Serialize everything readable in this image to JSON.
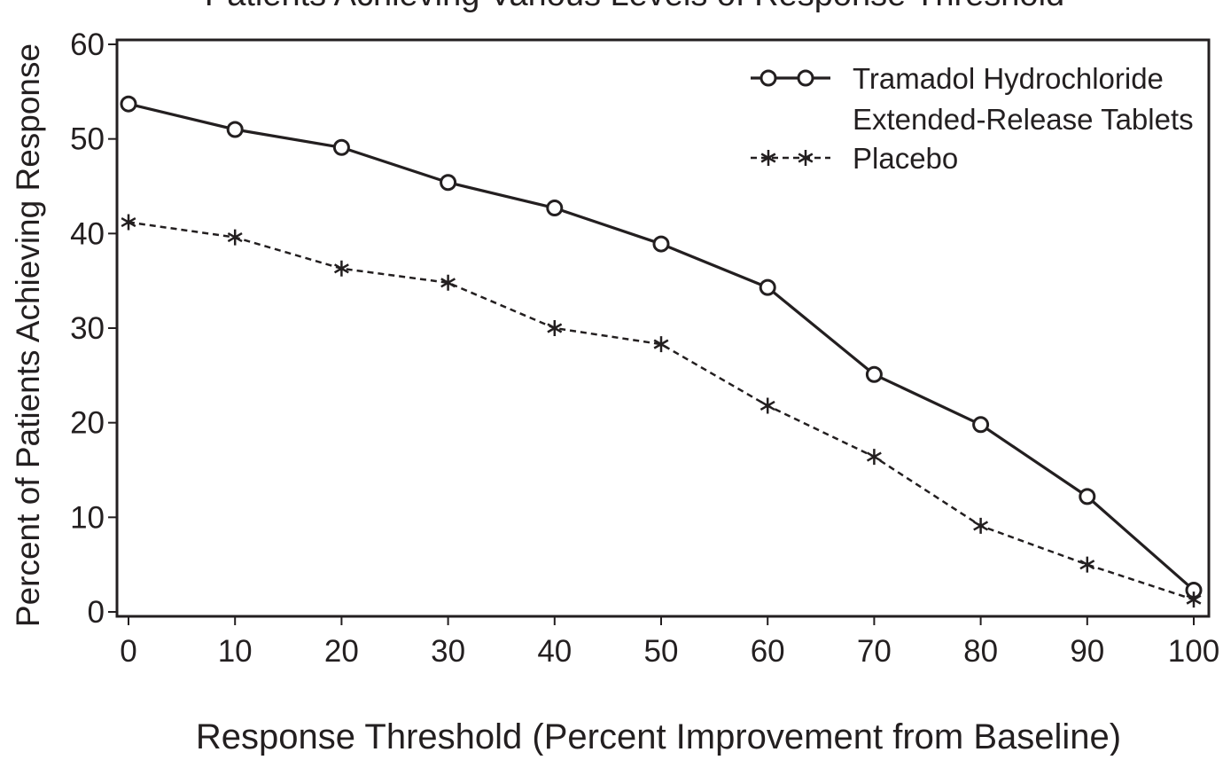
{
  "chart_data": {
    "type": "line",
    "title": "Patients Achieving Various Levels of Response Threshold",
    "xlabel": "Response Threshold (Percent Improvement from Baseline)",
    "ylabel": "Percent of Patients Achieving Response",
    "x": [
      0,
      10,
      20,
      30,
      40,
      50,
      60,
      70,
      80,
      90,
      100
    ],
    "xticks": [
      "0",
      "10",
      "20",
      "30",
      "40",
      "50",
      "60",
      "70",
      "80",
      "90",
      "100"
    ],
    "yticks": [
      "0",
      "10",
      "20",
      "30",
      "40",
      "50",
      "60"
    ],
    "xlim": [
      0,
      100
    ],
    "ylim": [
      0,
      60
    ],
    "grid": false,
    "legend_position": "top-right",
    "series": [
      {
        "name": "Tramadol Hydrochloride Extended-Release Tablets",
        "legend_lines": [
          "Tramadol Hydrochloride",
          "Extended-Release Tablets"
        ],
        "marker": "circle",
        "line_style": "solid",
        "color": "#231f20",
        "values": [
          53.7,
          51.0,
          49.1,
          45.4,
          42.7,
          38.9,
          34.3,
          25.1,
          19.8,
          12.2,
          2.3
        ]
      },
      {
        "name": "Placebo",
        "legend_lines": [
          "Placebo"
        ],
        "marker": "asterisk",
        "line_style": "dashed",
        "color": "#231f20",
        "values": [
          41.2,
          39.6,
          36.3,
          34.8,
          30.0,
          28.3,
          21.8,
          16.4,
          9.1,
          5.0,
          1.3
        ]
      }
    ]
  }
}
